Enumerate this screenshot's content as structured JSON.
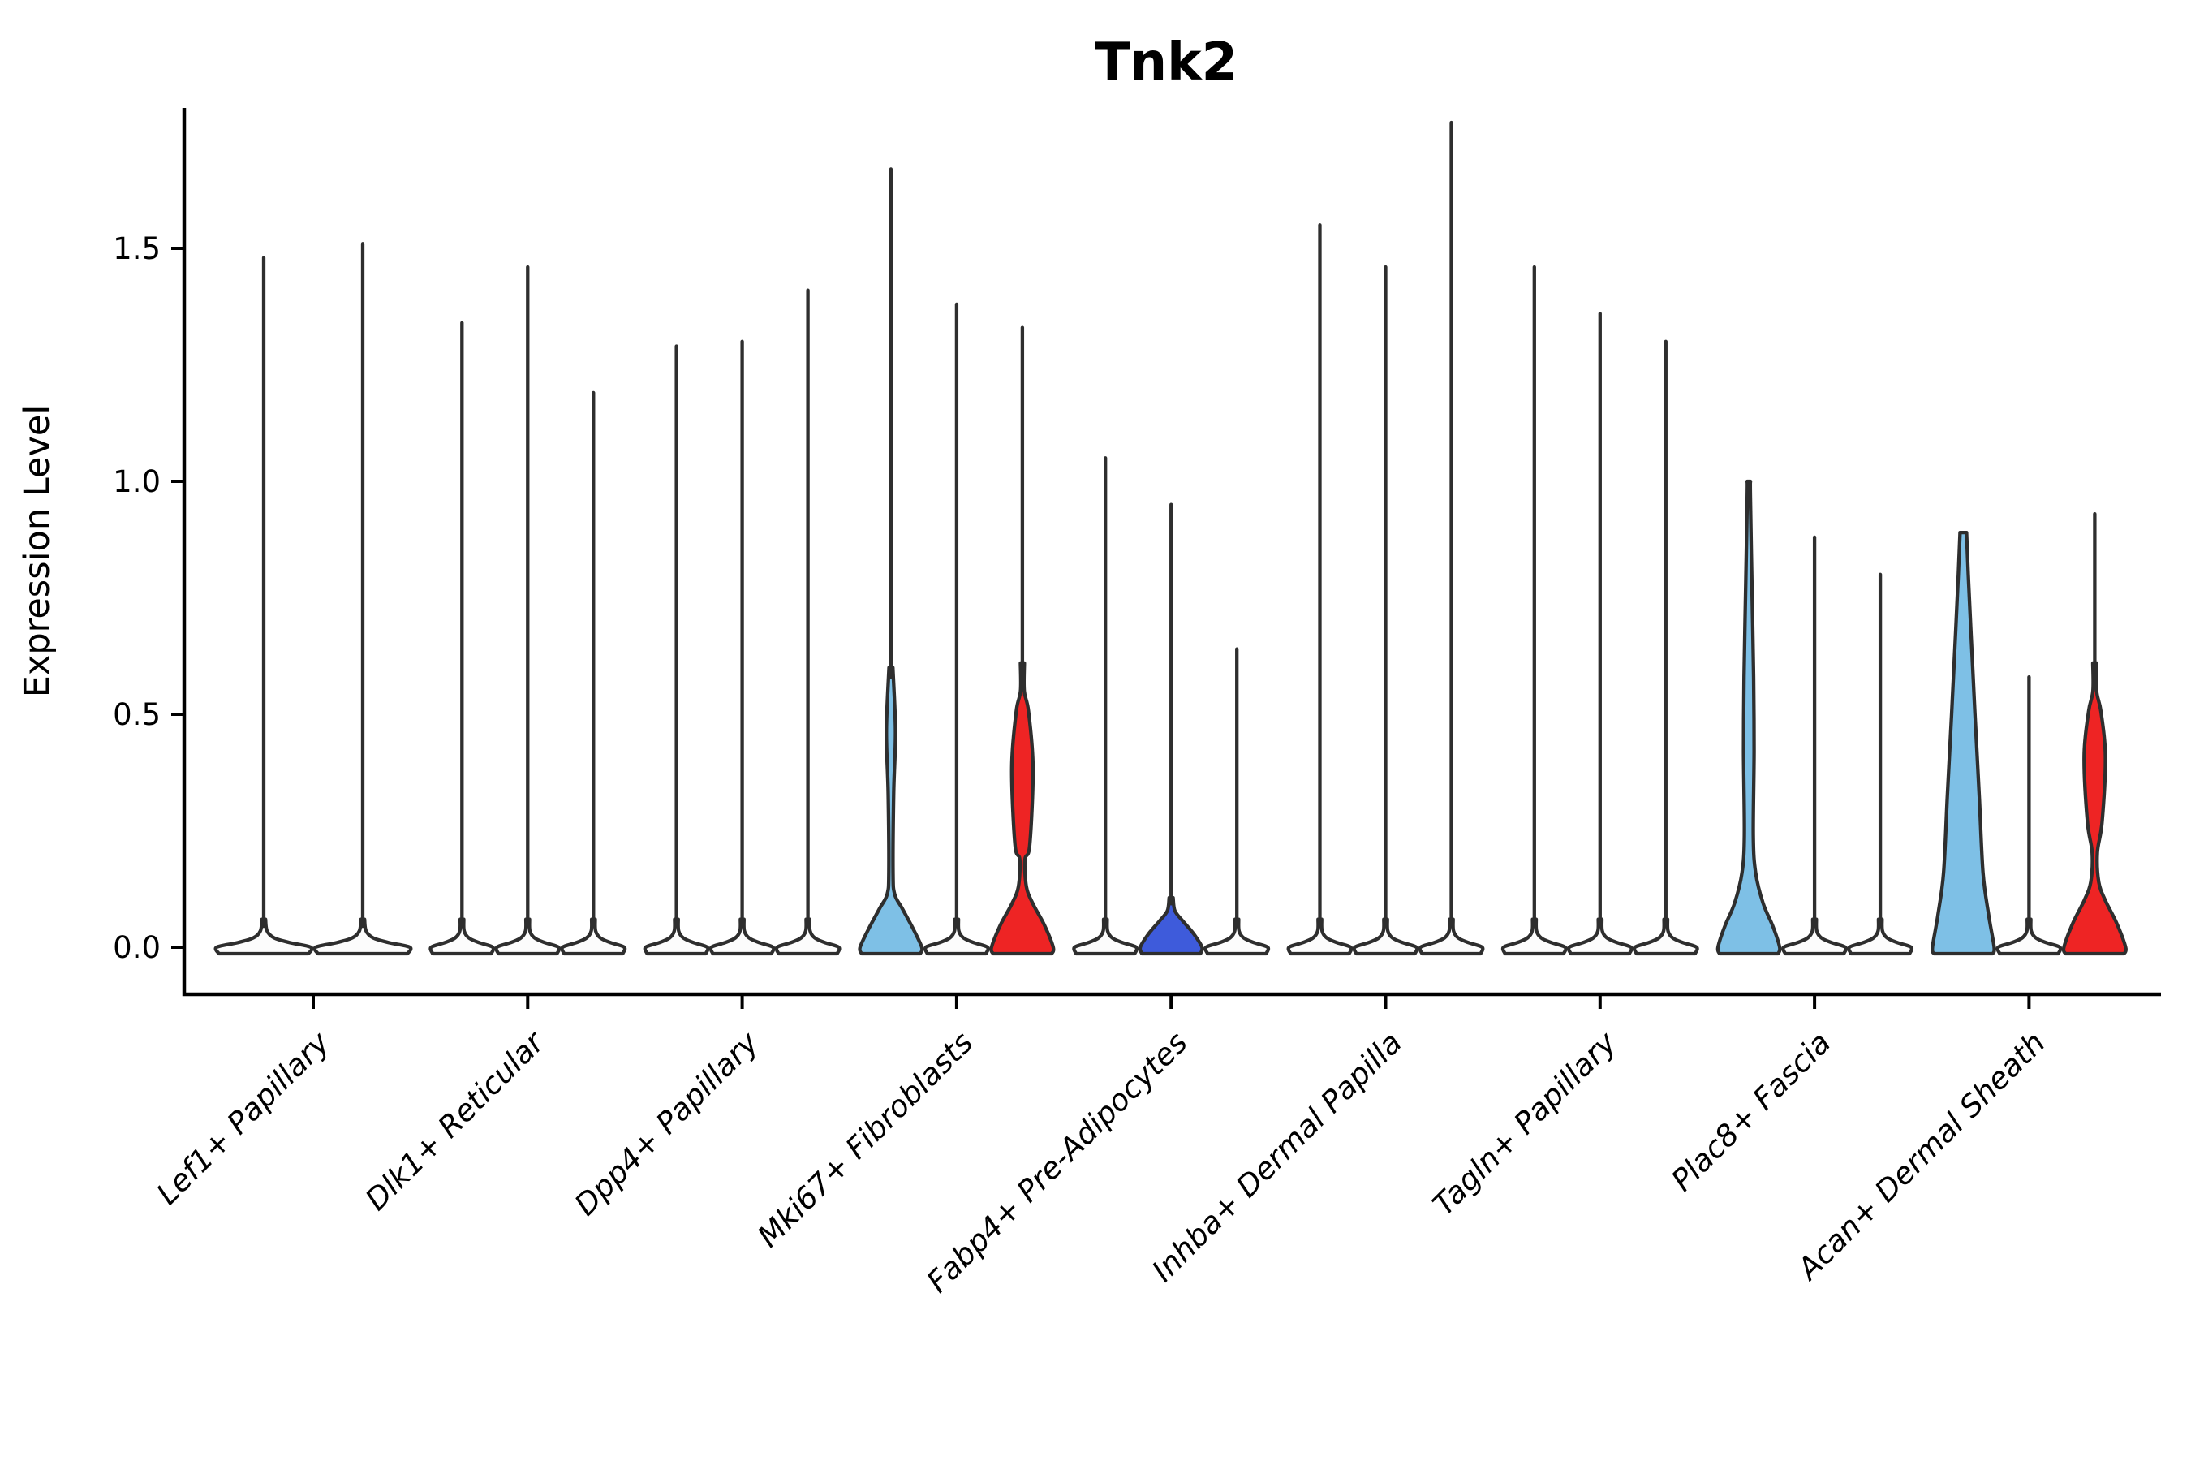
{
  "chart_data": {
    "type": "violin",
    "title": "Tnk2",
    "ylabel": "Expression Level",
    "xlabel": "",
    "ylim": [
      -0.1,
      1.8
    ],
    "yticks": [
      {
        "value": 0.0,
        "label": "0.0"
      },
      {
        "value": 0.5,
        "label": "0.5"
      },
      {
        "value": 1.0,
        "label": "1.0"
      },
      {
        "value": 1.5,
        "label": "1.5"
      }
    ],
    "grid": false,
    "legend": "none",
    "x_label_rotation_deg": 45,
    "x_label_style": "italic",
    "colors": {
      "violin_default_fill": "#FCFCFC",
      "violin_edge": "#2E2E2E",
      "sky_blue": "#7EC0E6",
      "royal_blue": "#3E5BDB",
      "red": "#EE2424",
      "axis": "#000000"
    },
    "categories": [
      {
        "label": "Lef1+ Papillary",
        "violins": [
          {
            "max": 1.48,
            "fill": "#FCFCFC",
            "shape": "plain"
          },
          {
            "max": 1.51,
            "fill": "#FCFCFC",
            "shape": "plain"
          }
        ]
      },
      {
        "label": "Dlk1+ Reticular",
        "violins": [
          {
            "max": 1.34,
            "fill": "#FCFCFC",
            "shape": "plain"
          },
          {
            "max": 1.46,
            "fill": "#FCFCFC",
            "shape": "plain"
          },
          {
            "max": 1.19,
            "fill": "#FCFCFC",
            "shape": "plain"
          }
        ]
      },
      {
        "label": "Dpp4+ Papillary",
        "violins": [
          {
            "max": 1.29,
            "fill": "#FCFCFC",
            "shape": "plain"
          },
          {
            "max": 1.3,
            "fill": "#FCFCFC",
            "shape": "plain"
          },
          {
            "max": 1.41,
            "fill": "#FCFCFC",
            "shape": "plain"
          }
        ]
      },
      {
        "label": "Mki67+ Fibroblasts",
        "violins": [
          {
            "max": 1.67,
            "fill": "#7EC0E6",
            "shape": "bulge_sliver",
            "bulge": 0.12,
            "sliver": [
              0.33,
              0.6
            ]
          },
          {
            "max": 1.38,
            "fill": "#FCFCFC",
            "shape": "plain"
          },
          {
            "max": 1.33,
            "fill": "#EE2424",
            "shape": "spindle",
            "bulge": 0.13,
            "spindle": [
              0.22,
              0.55
            ]
          }
        ]
      },
      {
        "label": "Fabp4+ Pre-Adipocytes",
        "violins": [
          {
            "max": 1.05,
            "fill": "#FCFCFC",
            "shape": "plain"
          },
          {
            "max": 0.95,
            "fill": "#3E5BDB",
            "shape": "bulge",
            "bulge": 0.085
          },
          {
            "max": 0.64,
            "fill": "#FCFCFC",
            "shape": "plain"
          }
        ]
      },
      {
        "label": "Inhba+ Dermal Papilla",
        "violins": [
          {
            "max": 1.55,
            "fill": "#FCFCFC",
            "shape": "plain"
          },
          {
            "max": 1.46,
            "fill": "#FCFCFC",
            "shape": "plain"
          },
          {
            "max": 1.77,
            "fill": "#FCFCFC",
            "shape": "plain"
          }
        ]
      },
      {
        "label": "Tagln+ Papillary",
        "violins": [
          {
            "max": 1.46,
            "fill": "#FCFCFC",
            "shape": "plain"
          },
          {
            "max": 1.36,
            "fill": "#FCFCFC",
            "shape": "plain"
          },
          {
            "max": 1.3,
            "fill": "#FCFCFC",
            "shape": "plain"
          }
        ]
      },
      {
        "label": "Plac8+ Fascia",
        "violins": [
          {
            "max": 1.0,
            "fill": "#7EC0E6",
            "shape": "funnel",
            "bulge": 0.12
          },
          {
            "max": 0.88,
            "fill": "#FCFCFC",
            "shape": "plain"
          },
          {
            "max": 0.8,
            "fill": "#FCFCFC",
            "shape": "plain"
          }
        ]
      },
      {
        "label": "Acan+ Dermal Sheath",
        "violins": [
          {
            "max": 0.89,
            "fill": "#7EC0E6",
            "shape": "wedge",
            "bulge": 0.1
          },
          {
            "max": 0.58,
            "fill": "#FCFCFC",
            "shape": "plain"
          },
          {
            "max": 0.93,
            "fill": "#EE2424",
            "shape": "spindle",
            "bulge": 0.14,
            "spindle": [
              0.27,
              0.55
            ]
          }
        ]
      }
    ]
  }
}
